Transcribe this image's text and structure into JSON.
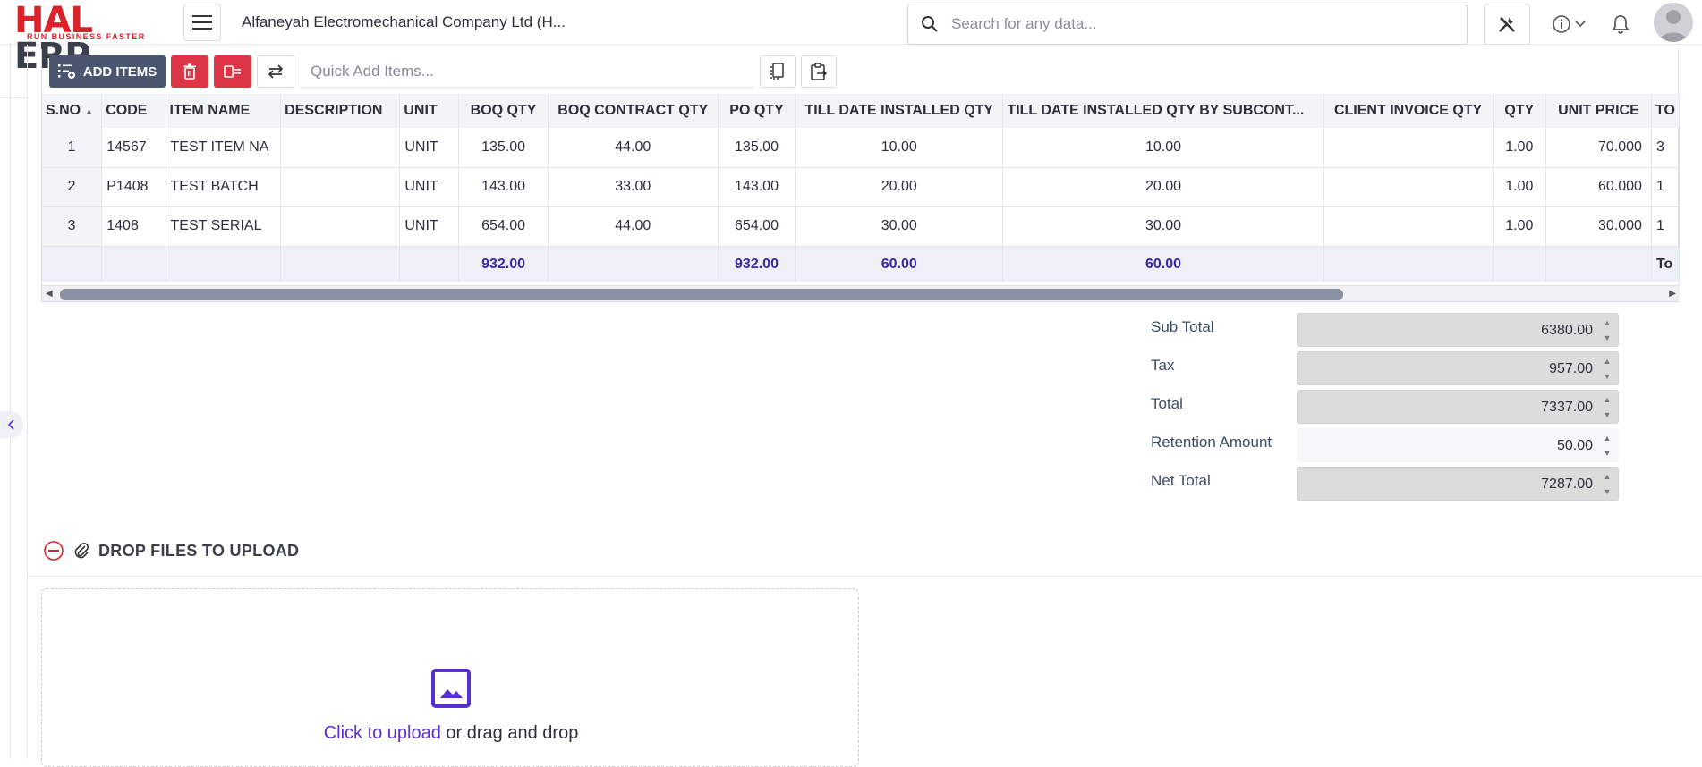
{
  "app": {
    "logo_hal": "HAL",
    "logo_erp": "ERP",
    "logo_tagline": "RUN BUSINESS FASTER",
    "company": "Alfaneyah Electromechanical Company Ltd (H...",
    "search_placeholder": "Search for any data..."
  },
  "toolbar": {
    "add_items_label": "ADD ITEMS",
    "quick_add_placeholder": "Quick Add Items..."
  },
  "grid": {
    "columns": [
      "S.NO",
      "CODE",
      "ITEM NAME",
      "DESCRIPTION",
      "UNIT",
      "BOQ QTY",
      "BOQ CONTRACT QTY",
      "PO QTY",
      "TILL DATE INSTALLED QTY",
      "TILL DATE INSTALLED QTY BY SUBCONT...",
      "CLIENT INVOICE QTY",
      "QTY",
      "UNIT PRICE",
      "TO"
    ],
    "rows": [
      {
        "sno": "1",
        "code": "14567",
        "item_name": "TEST ITEM NA",
        "description": "",
        "unit": "UNIT",
        "boq_qty": "135.00",
        "boq_contract_qty": "44.00",
        "po_qty": "135.00",
        "till_date_installed": "10.00",
        "till_date_installed_sub": "10.00",
        "client_invoice_qty": "",
        "qty": "1.00",
        "unit_price": "70.000",
        "total_partial": "3"
      },
      {
        "sno": "2",
        "code": "P1408",
        "item_name": "TEST BATCH",
        "description": "",
        "unit": "UNIT",
        "boq_qty": "143.00",
        "boq_contract_qty": "33.00",
        "po_qty": "143.00",
        "till_date_installed": "20.00",
        "till_date_installed_sub": "20.00",
        "client_invoice_qty": "",
        "qty": "1.00",
        "unit_price": "60.000",
        "total_partial": "1"
      },
      {
        "sno": "3",
        "code": "1408",
        "item_name": "TEST SERIAL",
        "description": "",
        "unit": "UNIT",
        "boq_qty": "654.00",
        "boq_contract_qty": "44.00",
        "po_qty": "654.00",
        "till_date_installed": "30.00",
        "till_date_installed_sub": "30.00",
        "client_invoice_qty": "",
        "qty": "1.00",
        "unit_price": "30.000",
        "total_partial": "1"
      }
    ],
    "totals": {
      "boq_qty": "932.00",
      "po_qty": "932.00",
      "till_date_installed": "60.00",
      "till_date_installed_sub": "60.00",
      "total_partial": "To"
    }
  },
  "summary": {
    "sub_total_label": "Sub Total",
    "sub_total": "6380.00",
    "tax_label": "Tax",
    "tax": "957.00",
    "total_label": "Total",
    "total": "7337.00",
    "retention_label": "Retention Amount",
    "retention": "50.00",
    "net_total_label": "Net Total",
    "net_total": "7287.00"
  },
  "upload": {
    "title": "DROP FILES TO UPLOAD",
    "link_text": "Click to upload",
    "rest_text": " or drag and drop"
  },
  "colors": {
    "brand_red": "#d8232a",
    "add_button": "#4a5670",
    "delete_button": "#dc3545",
    "totals_text": "#3a2aa0",
    "upload_link": "#5a2fd1"
  }
}
